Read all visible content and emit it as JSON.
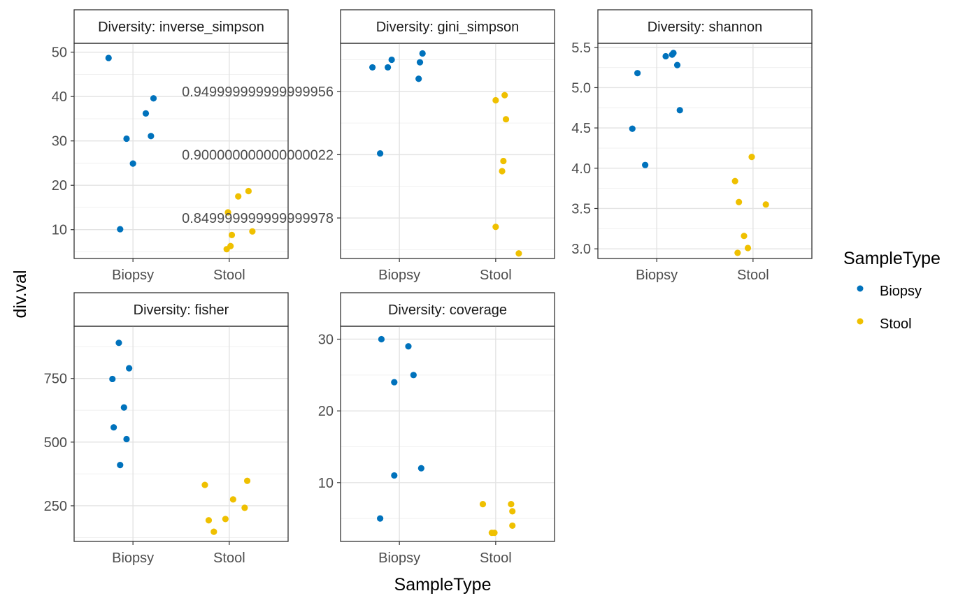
{
  "chart_data": {
    "type": "scatter",
    "xlabel": "SampleType",
    "ylabel": "div.val",
    "categories": [
      "Biopsy",
      "Stool"
    ],
    "colors": {
      "Biopsy": "#0072BC",
      "Stool": "#EFC000"
    },
    "legend": {
      "title": "SampleType",
      "position": "right",
      "entries": [
        "Biopsy",
        "Stool"
      ]
    },
    "grid": true,
    "panels": [
      {
        "strip": "Diversity: inverse_simpson",
        "ylim": [
          3.5,
          52
        ],
        "yticks": [
          10,
          20,
          30,
          40,
          50
        ],
        "series": [
          {
            "name": "Biopsy",
            "points": [
              [
                -0.19,
                48.7
              ],
              [
                -0.1,
                10.1
              ],
              [
                -0.05,
                30.5
              ],
              [
                0.0,
                24.9
              ],
              [
                0.1,
                36.2
              ],
              [
                0.14,
                31.1
              ],
              [
                0.16,
                39.6
              ]
            ]
          },
          {
            "name": "Stool",
            "points": [
              [
                -0.02,
                5.6
              ],
              [
                0.01,
                6.3
              ],
              [
                -0.01,
                13.9
              ],
              [
                0.02,
                8.8
              ],
              [
                0.07,
                17.5
              ],
              [
                0.15,
                18.7
              ],
              [
                0.18,
                9.6
              ]
            ]
          }
        ]
      },
      {
        "strip": "Diversity: gini_simpson",
        "ylim": [
          0.818,
          0.988
        ],
        "yticks": [
          0.85,
          0.9,
          0.95
        ],
        "series": [
          {
            "name": "Biopsy",
            "points": [
              [
                -0.21,
                0.969
              ],
              [
                -0.15,
                0.901
              ],
              [
                -0.09,
                0.969
              ],
              [
                -0.06,
                0.975
              ],
              [
                0.15,
                0.96
              ],
              [
                0.16,
                0.973
              ],
              [
                0.18,
                0.98
              ]
            ]
          },
          {
            "name": "Stool",
            "points": [
              [
                0.0,
                0.843
              ],
              [
                0.0,
                0.943
              ],
              [
                0.05,
                0.887
              ],
              [
                0.06,
                0.895
              ],
              [
                0.07,
                0.947
              ],
              [
                0.08,
                0.928
              ],
              [
                0.18,
                0.822
              ]
            ]
          }
        ]
      },
      {
        "strip": "Diversity: shannon",
        "ylim": [
          2.88,
          5.55
        ],
        "yticks": [
          3.0,
          3.5,
          4.0,
          4.5,
          5.0,
          5.5
        ],
        "series": [
          {
            "name": "Biopsy",
            "points": [
              [
                -0.19,
                4.49
              ],
              [
                -0.15,
                5.18
              ],
              [
                -0.09,
                4.04
              ],
              [
                0.07,
                5.39
              ],
              [
                0.12,
                5.41
              ],
              [
                0.13,
                5.43
              ],
              [
                0.16,
                5.28
              ],
              [
                0.18,
                4.72
              ]
            ]
          },
          {
            "name": "Stool",
            "points": [
              [
                -0.14,
                3.84
              ],
              [
                -0.12,
                2.95
              ],
              [
                -0.11,
                3.58
              ],
              [
                -0.07,
                3.16
              ],
              [
                -0.04,
                3.01
              ],
              [
                -0.01,
                4.14
              ],
              [
                0.1,
                3.55
              ]
            ]
          }
        ]
      },
      {
        "strip": "Diversity: fisher",
        "ylim": [
          110,
          955
        ],
        "yticks": [
          250,
          500,
          750
        ],
        "series": [
          {
            "name": "Biopsy",
            "points": [
              [
                -0.16,
                748
              ],
              [
                -0.15,
                558
              ],
              [
                -0.11,
                890
              ],
              [
                -0.1,
                410
              ],
              [
                -0.07,
                636
              ],
              [
                -0.05,
                512
              ],
              [
                -0.03,
                790
              ]
            ]
          },
          {
            "name": "Stool",
            "points": [
              [
                -0.19,
                332
              ],
              [
                -0.16,
                193
              ],
              [
                -0.12,
                148
              ],
              [
                -0.03,
                198
              ],
              [
                0.03,
                275
              ],
              [
                0.12,
                242
              ],
              [
                0.14,
                348
              ]
            ]
          }
        ]
      },
      {
        "strip": "Diversity: coverage",
        "ylim": [
          1.8,
          31.8
        ],
        "yticks": [
          10,
          20,
          30
        ],
        "series": [
          {
            "name": "Biopsy",
            "points": [
              [
                -0.14,
                30.0
              ],
              [
                -0.15,
                5.0
              ],
              [
                -0.04,
                24.0
              ],
              [
                -0.04,
                11.0
              ],
              [
                0.07,
                29.0
              ],
              [
                0.11,
                25.0
              ],
              [
                0.17,
                12.0
              ]
            ]
          },
          {
            "name": "Stool",
            "points": [
              [
                -0.1,
                7.0
              ],
              [
                -0.03,
                3.0
              ],
              [
                -0.01,
                3.0
              ],
              [
                0.12,
                7.0
              ],
              [
                0.13,
                6.0
              ],
              [
                0.13,
                4.0
              ]
            ]
          }
        ]
      }
    ]
  }
}
